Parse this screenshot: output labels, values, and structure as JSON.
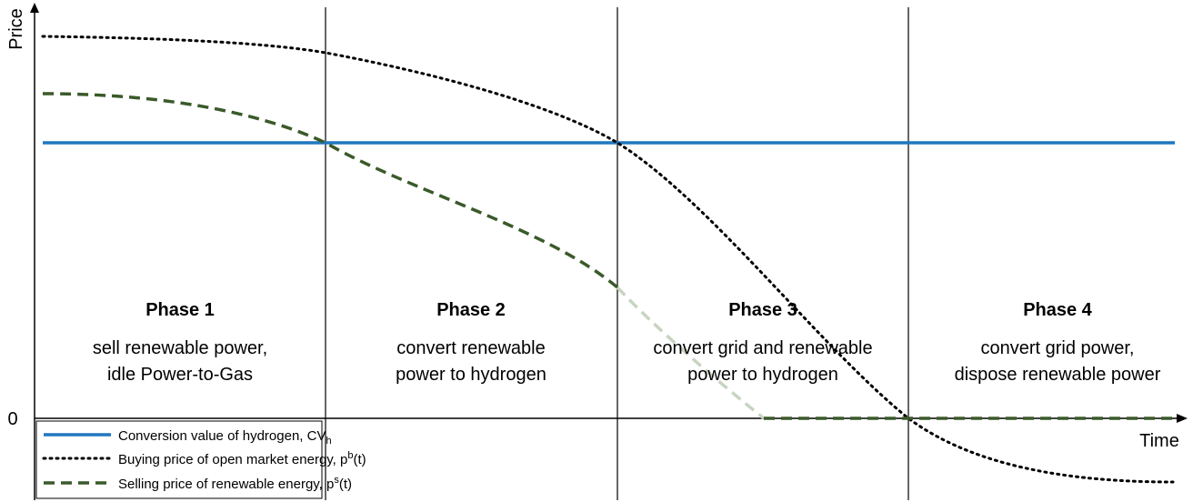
{
  "axes": {
    "y_label": "Price",
    "x_label": "Time",
    "zero_label": "0"
  },
  "phases": [
    {
      "title": "Phase 1",
      "lines": [
        "sell renewable power,",
        "idle Power-to-Gas"
      ]
    },
    {
      "title": "Phase 2",
      "lines": [
        "convert renewable",
        "power to hydrogen"
      ]
    },
    {
      "title": "Phase 3",
      "lines": [
        "convert grid and renewable",
        "power to hydrogen"
      ]
    },
    {
      "title": "Phase 4",
      "lines": [
        "convert grid power,",
        "dispose renewable power"
      ]
    }
  ],
  "legend": [
    {
      "text": "Conversion value of hydrogen, CV",
      "sub": "h"
    },
    {
      "text": "Buying price of open market energy, p",
      "sup": "b",
      "tail": "(t)"
    },
    {
      "text": "Selling price of renewable energy, p",
      "sup": "s",
      "tail": "(t)"
    }
  ]
}
